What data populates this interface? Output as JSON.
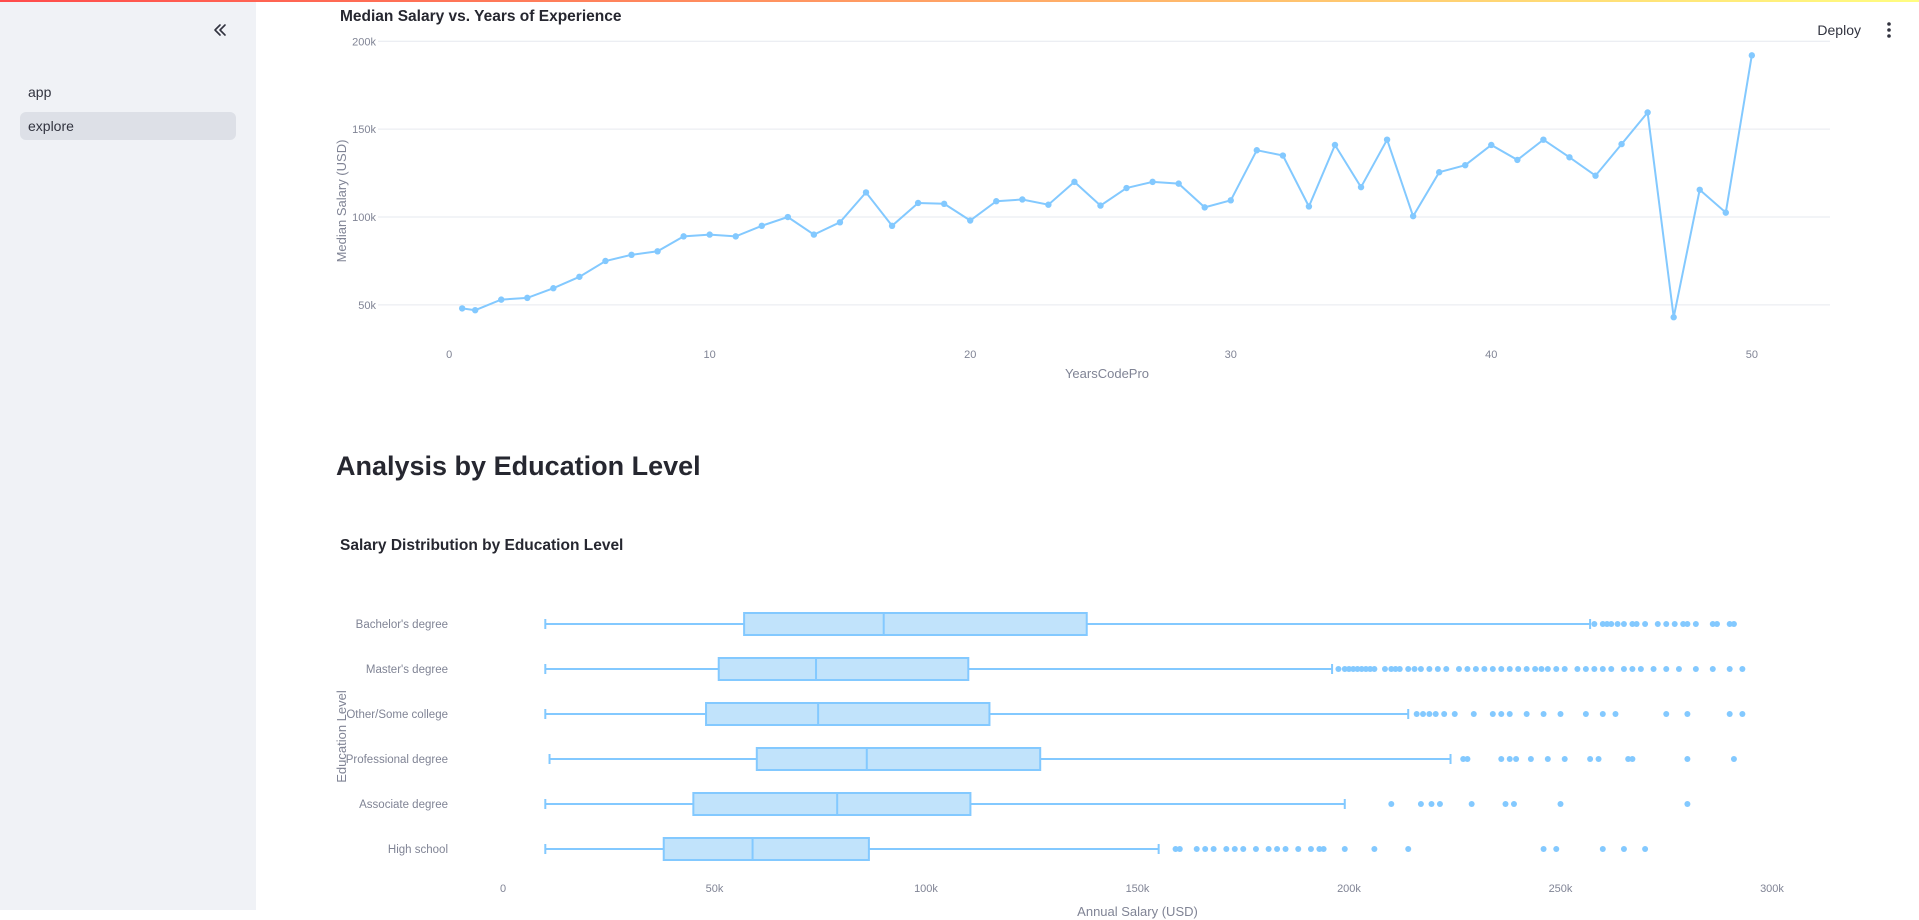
{
  "sidebar": {
    "collapse_label": "«",
    "items": [
      {
        "label": "app",
        "active": false
      },
      {
        "label": "explore",
        "active": true
      }
    ]
  },
  "header": {
    "deploy_label": "Deploy",
    "menu_icon": "vertical-ellipsis-icon"
  },
  "main": {
    "section_heading": "Analysis by Education Level"
  },
  "colors": {
    "accent": "#83c9ff",
    "box_fill": "#c1e3fb",
    "grid": "#e6e9ef",
    "axis_text": "#808495",
    "sidebar_bg": "#f0f2f6",
    "active_item_bg": "#dde0e7"
  },
  "chart_data": [
    {
      "type": "line",
      "title": "Median Salary vs. Years of Experience",
      "xlabel": "YearsCodePro",
      "ylabel": "Median Salary (USD)",
      "xlim": [
        -2.5,
        53
      ],
      "ylim": [
        38000,
        203000
      ],
      "xticks": [
        0,
        10,
        20,
        30,
        40,
        50
      ],
      "xtick_labels": [
        "0",
        "10",
        "20",
        "30",
        "40",
        "50"
      ],
      "yticks": [
        50000,
        100000,
        150000,
        200000
      ],
      "ytick_labels": [
        "50k",
        "100k",
        "150k",
        "200k"
      ],
      "grid": true,
      "x": [
        0.5,
        1,
        2,
        3,
        4,
        5,
        6,
        7,
        8,
        9,
        10,
        11,
        12,
        13,
        14,
        15,
        16,
        17,
        18,
        19,
        20,
        21,
        22,
        23,
        24,
        25,
        26,
        27,
        28,
        29,
        30,
        31,
        32,
        33,
        34,
        35,
        36,
        37,
        38,
        39,
        40,
        41,
        42,
        43,
        44,
        45,
        46,
        47,
        48,
        49,
        50
      ],
      "values": [
        48000,
        47000,
        53000,
        54000,
        59500,
        66000,
        75000,
        78500,
        80500,
        89000,
        90000,
        89000,
        95000,
        100000,
        90000,
        97000,
        114000,
        95000,
        108000,
        107500,
        98000,
        109000,
        110000,
        107000,
        120000,
        106500,
        116500,
        120000,
        119000,
        105500,
        109500,
        138000,
        135000,
        106000,
        141000,
        117000,
        144000,
        100500,
        125500,
        129500,
        141000,
        132500,
        144000,
        134000,
        123500,
        141500,
        159500,
        43000,
        115500,
        102500,
        192000
      ]
    },
    {
      "type": "box",
      "title": "Salary Distribution by Education Level",
      "xlabel": "Annual Salary (USD)",
      "ylabel": "Education Level",
      "xlim": [
        0,
        300000
      ],
      "xticks": [
        0,
        50000,
        100000,
        150000,
        200000,
        250000,
        300000
      ],
      "xtick_labels": [
        "0",
        "50k",
        "100k",
        "150k",
        "200k",
        "250k",
        "300k"
      ],
      "categories": [
        "Bachelor's degree",
        "Master's degree",
        "Other/Some college",
        "Professional degree",
        "Associate degree",
        "High school"
      ],
      "boxes": [
        {
          "min": 10000,
          "q1": 57000,
          "median": 90000,
          "q3": 138000,
          "max": 257000,
          "outliers": [
            258000,
            260000,
            261000,
            262000,
            263500,
            265000,
            267000,
            268000,
            270000,
            273000,
            275000,
            277000,
            279000,
            280000,
            282000,
            286000,
            287000,
            290000,
            291000
          ]
        },
        {
          "min": 10000,
          "q1": 51000,
          "median": 74000,
          "q3": 110000,
          "max": 196000,
          "outliers": [
            197500,
            199000,
            200000,
            201000,
            202000,
            203000,
            204000,
            205000,
            206000,
            208500,
            210000,
            211000,
            212000,
            214000,
            215500,
            217000,
            219000,
            221000,
            223000,
            226000,
            228000,
            230000,
            232000,
            234000,
            236000,
            238000,
            240000,
            242000,
            244000,
            245500,
            247000,
            249000,
            251000,
            254000,
            256000,
            258000,
            260000,
            262000,
            265000,
            267000,
            269000,
            272000,
            275000,
            278000,
            282000,
            286000,
            290000,
            293000
          ]
        },
        {
          "min": 10000,
          "q1": 48000,
          "median": 74500,
          "q3": 115000,
          "max": 214000,
          "outliers": [
            216000,
            217500,
            219000,
            220500,
            222500,
            225000,
            229500,
            234000,
            236000,
            238000,
            242000,
            246000,
            250000,
            256000,
            260000,
            263000,
            275000,
            280000,
            290000,
            293000
          ]
        },
        {
          "min": 11000,
          "q1": 60000,
          "median": 86000,
          "q3": 127000,
          "max": 224000,
          "outliers": [
            227000,
            228000,
            236000,
            238000,
            239500,
            243000,
            247000,
            251000,
            257000,
            259000,
            266000,
            267000,
            280000,
            291000
          ]
        },
        {
          "min": 10000,
          "q1": 45000,
          "median": 79000,
          "q3": 110500,
          "max": 199000,
          "outliers": [
            210000,
            217000,
            219500,
            221500,
            229000,
            237000,
            239000,
            250000,
            280000
          ]
        },
        {
          "min": 10000,
          "q1": 38000,
          "median": 59000,
          "q3": 86500,
          "max": 155000,
          "outliers": [
            159000,
            160000,
            164000,
            166000,
            168000,
            171000,
            173000,
            175000,
            178000,
            181000,
            183000,
            185000,
            188000,
            191000,
            193000,
            194000,
            199000,
            206000,
            214000,
            246000,
            249000,
            260000,
            265000,
            270000
          ]
        }
      ]
    }
  ]
}
